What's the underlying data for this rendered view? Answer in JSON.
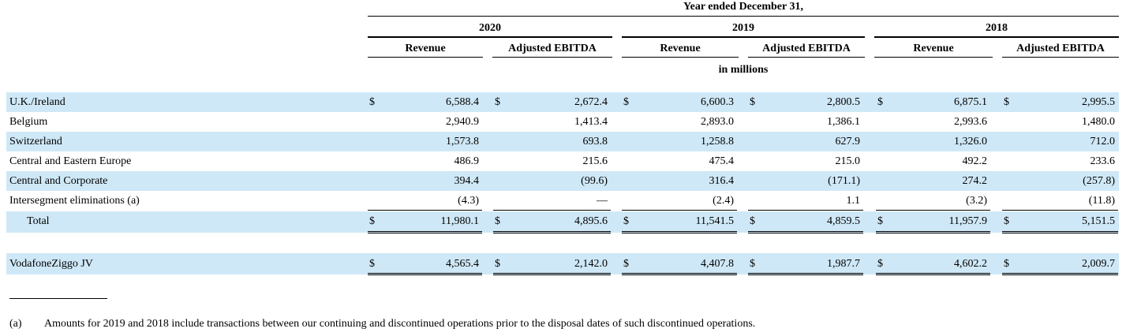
{
  "header": {
    "period": "Year ended December 31,",
    "years": [
      "2020",
      "2019",
      "2018"
    ],
    "col_labels": [
      "Revenue",
      "Adjusted EBITDA",
      "Revenue",
      "Adjusted EBITDA",
      "Revenue",
      "Adjusted EBITDA"
    ],
    "units": "in millions"
  },
  "currency_symbol": "$",
  "rows": [
    {
      "label": "U.K./Ireland",
      "dollar": true,
      "values": [
        "6,588.4",
        "2,672.4",
        "6,600.3",
        "2,800.5",
        "6,875.1",
        "2,995.5"
      ]
    },
    {
      "label": "Belgium",
      "dollar": false,
      "values": [
        "2,940.9",
        "1,413.4",
        "2,893.0",
        "1,386.1",
        "2,993.6",
        "1,480.0"
      ]
    },
    {
      "label": "Switzerland",
      "dollar": false,
      "values": [
        "1,573.8",
        "693.8",
        "1,258.8",
        "627.9",
        "1,326.0",
        "712.0"
      ]
    },
    {
      "label": "Central and Eastern Europe",
      "dollar": false,
      "values": [
        "486.9",
        "215.6",
        "475.4",
        "215.0",
        "492.2",
        "233.6"
      ]
    },
    {
      "label": "Central and Corporate",
      "dollar": false,
      "values": [
        "394.4",
        "(99.6)",
        "316.4",
        "(171.1)",
        "274.2",
        "(257.8)"
      ]
    },
    {
      "label": "Intersegment eliminations (a)",
      "dollar": false,
      "values": [
        "(4.3)",
        "—",
        "(2.4)",
        "1.1",
        "(3.2)",
        "(11.8)"
      ]
    }
  ],
  "total": {
    "label": "Total",
    "values": [
      "11,980.1",
      "4,895.6",
      "11,541.5",
      "4,859.5",
      "11,957.9",
      "5,151.5"
    ]
  },
  "jv": {
    "label": "VodafoneZiggo JV",
    "values": [
      "4,565.4",
      "2,142.0",
      "4,407.8",
      "1,987.7",
      "4,602.2",
      "2,009.7"
    ]
  },
  "footnote": {
    "marker": "(a)",
    "text": "Amounts for 2019 and 2018 include transactions between our continuing and discontinued operations prior to the disposal dates of such discontinued operations."
  }
}
